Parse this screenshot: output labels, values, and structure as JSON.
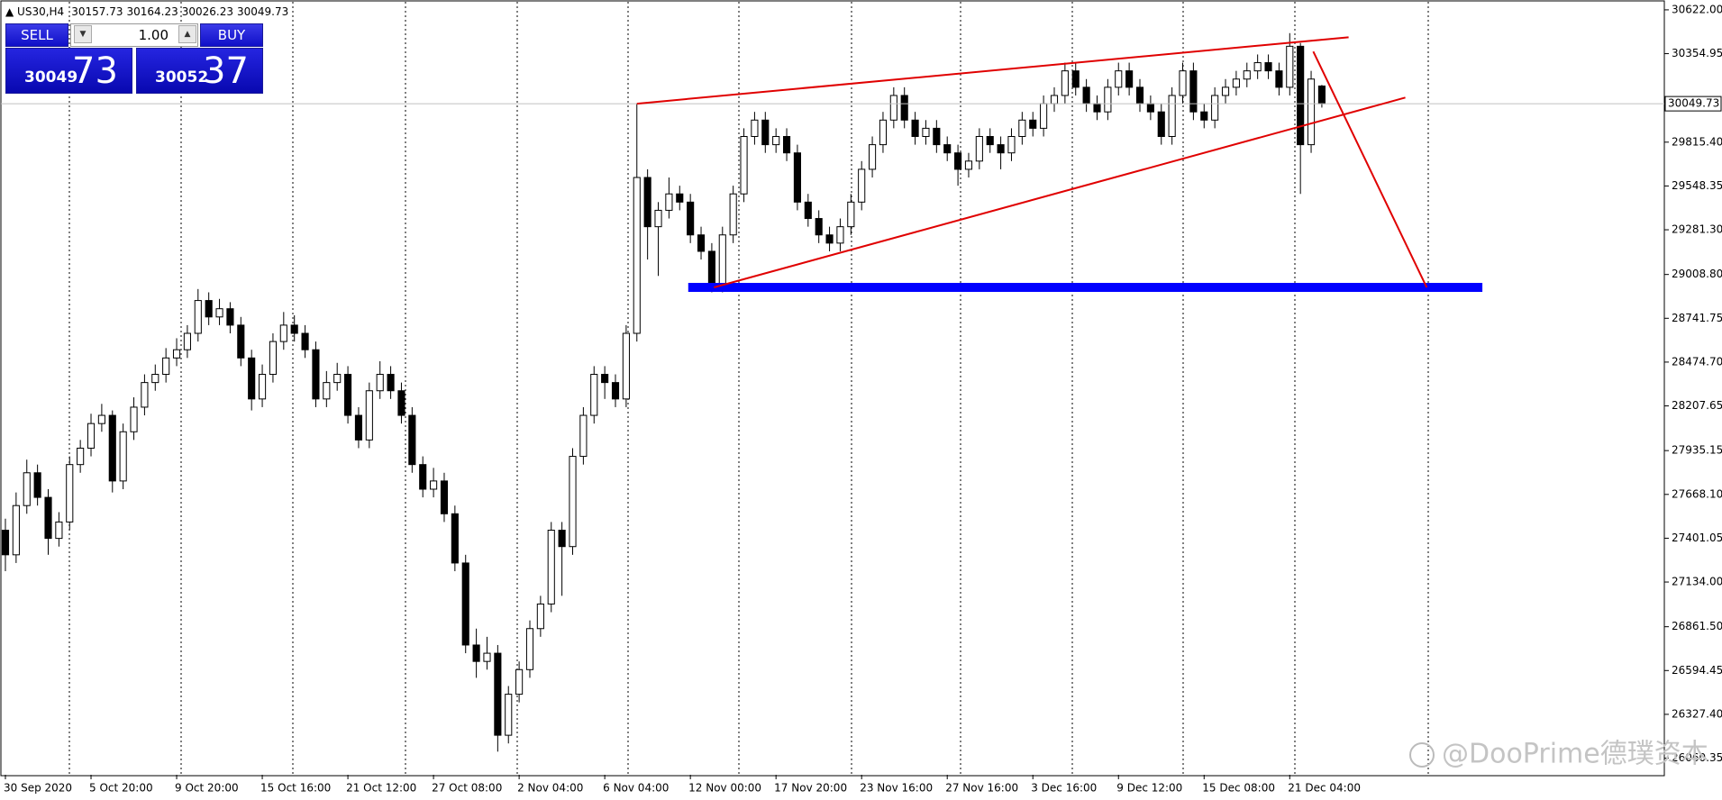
{
  "header": {
    "symbol": "US30,H4"
  },
  "trade_panel": {
    "sell": "SELL",
    "buy": "BUY",
    "lot": "1.00",
    "bid_main": "30049",
    "bid_pips": "73",
    "ask_main": "30052",
    "ask_pips": "37"
  },
  "watermark": "@DooPrime德璞资本",
  "chart_data": {
    "type": "candlestick",
    "up_color": "#ffffff",
    "down_color": "#000000",
    "line_color": "#000000",
    "categories": [
      "30 Sep 2020",
      null,
      null,
      null,
      null,
      null,
      null,
      null,
      "5 Oct 20:00",
      null,
      null,
      null,
      null,
      null,
      null,
      null,
      "9 Oct 20:00",
      null,
      null,
      null,
      null,
      null,
      null,
      null,
      "15 Oct 16:00",
      null,
      null,
      null,
      null,
      null,
      null,
      null,
      "21 Oct 12:00",
      null,
      null,
      null,
      null,
      null,
      null,
      null,
      "27 Oct 08:00",
      null,
      null,
      null,
      null,
      null,
      null,
      null,
      "2 Nov 04:00",
      null,
      null,
      null,
      null,
      null,
      null,
      null,
      "6 Nov 04:00",
      null,
      null,
      null,
      null,
      null,
      null,
      null,
      "12 Nov 00:00",
      null,
      null,
      null,
      null,
      null,
      null,
      null,
      "17 Nov 20:00",
      null,
      null,
      null,
      null,
      null,
      null,
      null,
      "23 Nov 16:00",
      null,
      null,
      null,
      null,
      null,
      null,
      null,
      "27 Nov 16:00",
      null,
      null,
      null,
      null,
      null,
      null,
      null,
      "3 Dec 16:00",
      null,
      null,
      null,
      null,
      null,
      null,
      null,
      "9 Dec 12:00",
      null,
      null,
      null,
      null,
      null,
      null,
      null,
      "15 Dec 08:00",
      null,
      null,
      null,
      null,
      null,
      null,
      null,
      "21 Dec 04:00",
      null,
      null,
      null
    ],
    "ohlc": [
      [
        27450,
        27520,
        27200,
        27300
      ],
      [
        27300,
        27680,
        27250,
        27600
      ],
      [
        27600,
        27880,
        27550,
        27800
      ],
      [
        27800,
        27850,
        27600,
        27650
      ],
      [
        27650,
        27700,
        27300,
        27400
      ],
      [
        27400,
        27560,
        27350,
        27500
      ],
      [
        27500,
        27900,
        27450,
        27850
      ],
      [
        27850,
        28000,
        27800,
        27950
      ],
      [
        27950,
        28160,
        27900,
        28100
      ],
      [
        28100,
        28220,
        28050,
        28150
      ],
      [
        28150,
        28180,
        27680,
        27750
      ],
      [
        27750,
        28100,
        27700,
        28050
      ],
      [
        28050,
        28260,
        28000,
        28200
      ],
      [
        28200,
        28400,
        28150,
        28350
      ],
      [
        28350,
        28460,
        28300,
        28400
      ],
      [
        28400,
        28560,
        28350,
        28500
      ],
      [
        28500,
        28620,
        28450,
        28550
      ],
      [
        28550,
        28700,
        28500,
        28650
      ],
      [
        28650,
        28920,
        28600,
        28850
      ],
      [
        28850,
        28900,
        28700,
        28750
      ],
      [
        28750,
        28860,
        28700,
        28800
      ],
      [
        28800,
        28840,
        28650,
        28700
      ],
      [
        28700,
        28750,
        28450,
        28500
      ],
      [
        28500,
        28550,
        28180,
        28250
      ],
      [
        28250,
        28460,
        28200,
        28400
      ],
      [
        28400,
        28650,
        28350,
        28600
      ],
      [
        28600,
        28780,
        28550,
        28700
      ],
      [
        28700,
        28760,
        28600,
        28650
      ],
      [
        28650,
        28700,
        28500,
        28550
      ],
      [
        28550,
        28600,
        28200,
        28250
      ],
      [
        28250,
        28420,
        28200,
        28350
      ],
      [
        28350,
        28470,
        28300,
        28400
      ],
      [
        28400,
        28450,
        28100,
        28150
      ],
      [
        28150,
        28200,
        27950,
        28000
      ],
      [
        28000,
        28350,
        27950,
        28300
      ],
      [
        28300,
        28480,
        28250,
        28400
      ],
      [
        28400,
        28450,
        28250,
        28300
      ],
      [
        28300,
        28350,
        28100,
        28150
      ],
      [
        28150,
        28200,
        27800,
        27850
      ],
      [
        27850,
        27900,
        27650,
        27700
      ],
      [
        27700,
        27830,
        27650,
        27750
      ],
      [
        27750,
        27800,
        27500,
        27550
      ],
      [
        27550,
        27600,
        27200,
        27250
      ],
      [
        27250,
        27300,
        26700,
        26750
      ],
      [
        26750,
        26850,
        26550,
        26650
      ],
      [
        26650,
        26800,
        26600,
        26700
      ],
      [
        26700,
        26750,
        26100,
        26200
      ],
      [
        26200,
        26500,
        26150,
        26450
      ],
      [
        26450,
        26650,
        26400,
        26600
      ],
      [
        26600,
        26900,
        26550,
        26850
      ],
      [
        26850,
        27050,
        26800,
        27000
      ],
      [
        27000,
        27500,
        26950,
        27450
      ],
      [
        27450,
        27500,
        27050,
        27350
      ],
      [
        27350,
        27950,
        27300,
        27900
      ],
      [
        27900,
        28200,
        27850,
        28150
      ],
      [
        28150,
        28450,
        28100,
        28400
      ],
      [
        28400,
        28450,
        28250,
        28350
      ],
      [
        28350,
        28400,
        28200,
        28250
      ],
      [
        28250,
        28700,
        28200,
        28650
      ],
      [
        28650,
        30050,
        28600,
        29600
      ],
      [
        29600,
        29650,
        29100,
        29300
      ],
      [
        29300,
        29450,
        29000,
        29400
      ],
      [
        29400,
        29600,
        29350,
        29500
      ],
      [
        29500,
        29550,
        29400,
        29450
      ],
      [
        29450,
        29500,
        29200,
        29250
      ],
      [
        29250,
        29300,
        29100,
        29150
      ],
      [
        29150,
        29200,
        28900,
        28950
      ],
      [
        28950,
        29300,
        28900,
        29250
      ],
      [
        29250,
        29550,
        29200,
        29500
      ],
      [
        29500,
        29900,
        29450,
        29850
      ],
      [
        29850,
        30000,
        29800,
        29950
      ],
      [
        29950,
        30000,
        29750,
        29800
      ],
      [
        29800,
        29900,
        29750,
        29850
      ],
      [
        29850,
        29900,
        29700,
        29750
      ],
      [
        29750,
        29800,
        29400,
        29450
      ],
      [
        29450,
        29500,
        29300,
        29350
      ],
      [
        29350,
        29400,
        29200,
        29250
      ],
      [
        29250,
        29300,
        29150,
        29200
      ],
      [
        29200,
        29350,
        29150,
        29300
      ],
      [
        29300,
        29500,
        29250,
        29450
      ],
      [
        29450,
        29700,
        29400,
        29650
      ],
      [
        29650,
        29850,
        29600,
        29800
      ],
      [
        29800,
        30000,
        29750,
        29950
      ],
      [
        29950,
        30150,
        29900,
        30100
      ],
      [
        30100,
        30150,
        29900,
        29950
      ],
      [
        29950,
        30000,
        29800,
        29850
      ],
      [
        29850,
        29950,
        29800,
        29900
      ],
      [
        29900,
        29950,
        29750,
        29800
      ],
      [
        29800,
        29850,
        29700,
        29750
      ],
      [
        29750,
        29800,
        29550,
        29650
      ],
      [
        29650,
        29750,
        29600,
        29700
      ],
      [
        29700,
        29900,
        29650,
        29850
      ],
      [
        29850,
        29900,
        29750,
        29800
      ],
      [
        29800,
        29850,
        29650,
        29750
      ],
      [
        29750,
        29900,
        29700,
        29850
      ],
      [
        29850,
        30000,
        29800,
        29950
      ],
      [
        29950,
        30000,
        29850,
        29900
      ],
      [
        29900,
        30100,
        29850,
        30050
      ],
      [
        30050,
        30150,
        30000,
        30100
      ],
      [
        30100,
        30300,
        30050,
        30250
      ],
      [
        30250,
        30300,
        30100,
        30150
      ],
      [
        30150,
        30200,
        30000,
        30050
      ],
      [
        30050,
        30100,
        29950,
        30000
      ],
      [
        30000,
        30200,
        29950,
        30150
      ],
      [
        30150,
        30300,
        30100,
        30250
      ],
      [
        30250,
        30300,
        30100,
        30150
      ],
      [
        30150,
        30200,
        30000,
        30050
      ],
      [
        30050,
        30100,
        29950,
        30000
      ],
      [
        30000,
        30050,
        29800,
        29850
      ],
      [
        29850,
        30150,
        29800,
        30100
      ],
      [
        30100,
        30300,
        30050,
        30250
      ],
      [
        30250,
        30300,
        29950,
        30000
      ],
      [
        30000,
        30050,
        29900,
        29950
      ],
      [
        29950,
        30150,
        29900,
        30100
      ],
      [
        30100,
        30200,
        30050,
        30150
      ],
      [
        30150,
        30250,
        30100,
        30200
      ],
      [
        30200,
        30300,
        30150,
        30250
      ],
      [
        30250,
        30350,
        30200,
        30300
      ],
      [
        30300,
        30350,
        30200,
        30250
      ],
      [
        30250,
        30300,
        30100,
        30150
      ],
      [
        30150,
        30480,
        30100,
        30400
      ],
      [
        30400,
        30420,
        29500,
        29800
      ],
      [
        29800,
        30250,
        29750,
        30200
      ],
      [
        30157.73,
        30164.23,
        30026.23,
        30049.73
      ]
    ],
    "xlim": [
      0,
      155
    ],
    "ylim": [
      25959,
      30682
    ],
    "yticks": [
      {
        "value": 30622,
        "label": "30622.00"
      },
      30354.95,
      {
        "value": 29815.4,
        "label": "29815.40"
      },
      29548.35,
      {
        "value": 29281.3,
        "label": "29281.30"
      },
      {
        "value": 29008.8,
        "label": "29008.80"
      },
      28741.75,
      {
        "value": 28474.7,
        "label": "28474.70"
      },
      28207.65,
      27935.15,
      {
        "value": 27668.1,
        "label": "27668.10"
      },
      27401.05,
      {
        "value": 27134,
        "label": "27134.00"
      },
      {
        "value": 26861.5,
        "label": "26861.50"
      },
      26594.45,
      {
        "value": 26327.4,
        "label": "26327.40"
      },
      26060.35
    ],
    "trendlines": [
      {
        "color": "#e00000",
        "x": [
          59,
          125.5
        ],
        "y": [
          30050,
          30455
        ]
      },
      {
        "color": "#e00000",
        "x": [
          66.2,
          130.8
        ],
        "y": [
          28930,
          30087
        ]
      },
      {
        "color": "#e00000",
        "x": [
          122.2,
          132.8
        ],
        "y": [
          30368,
          28930
        ]
      }
    ],
    "levels": [
      {
        "color": "#0000ff",
        "x": [
          63.8,
          138
        ],
        "y": 28930
      }
    ]
  }
}
